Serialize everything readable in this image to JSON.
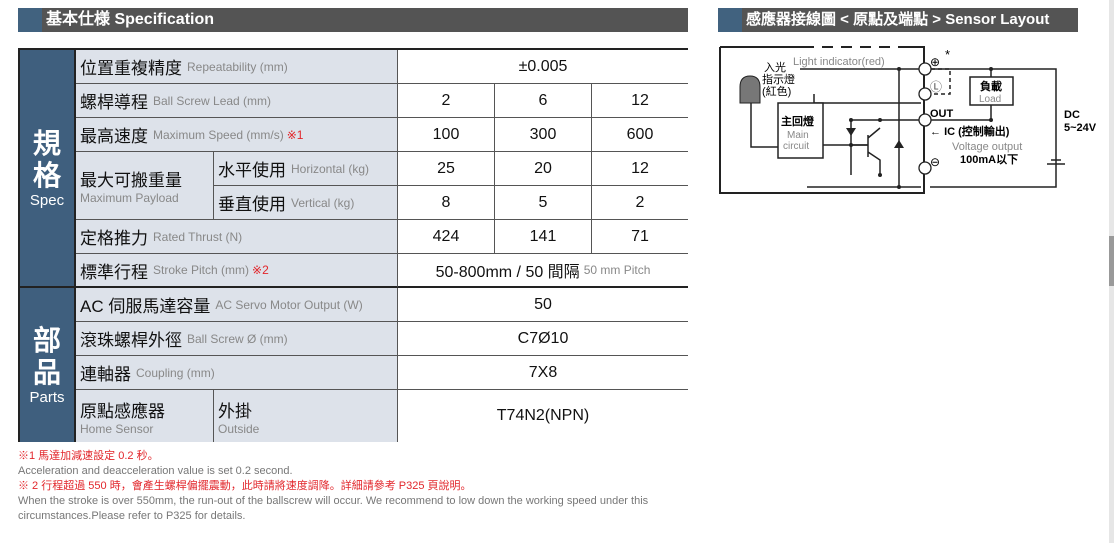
{
  "spec_header": "基本仕様 Specification",
  "sensor_header": "感應器接線圖 < 原點及端點 > Sensor Layout",
  "side": {
    "spec_zh1": "規",
    "spec_zh2": "格",
    "spec_en": "Spec",
    "parts_zh1": "部",
    "parts_zh2": "品",
    "parts_en": "Parts"
  },
  "rows": {
    "repeat": {
      "zh": "位置重複精度",
      "en": "Repeatability (mm)",
      "value": "±0.005"
    },
    "lead": {
      "zh": "螺桿導程",
      "en": "Ball Screw Lead (mm)",
      "values": [
        "2",
        "6",
        "12"
      ]
    },
    "speed": {
      "zh": "最高速度",
      "en": "Maximum Speed (mm/s)",
      "note": "※1",
      "values": [
        "100",
        "300",
        "600"
      ]
    },
    "payload": {
      "zh": "最大可搬重量",
      "en": "Maximum Payload",
      "horizontal": {
        "zh": "水平使用",
        "en": "Horizontal (kg)",
        "values": [
          "25",
          "20",
          "12"
        ]
      },
      "vertical": {
        "zh": "垂直使用",
        "en": "Vertical (kg)",
        "values": [
          "8",
          "5",
          "2"
        ]
      }
    },
    "thrust": {
      "zh": "定格推力",
      "en": "Rated Thrust (N)",
      "values": [
        "424",
        "141",
        "71"
      ]
    },
    "stroke": {
      "zh": "標準行程",
      "en": "Stroke Pitch (mm)",
      "note": "※2",
      "value": "50-800mm / 50 間隔",
      "value_en": "50 mm Pitch"
    },
    "motor": {
      "zh": "AC 伺服馬達容量",
      "en": "AC Servo Motor Output (W)",
      "value": "50"
    },
    "screw": {
      "zh": "滾珠螺桿外徑",
      "en": "Ball Screw Ø (mm)",
      "value": "C7Ø10"
    },
    "coupling": {
      "zh": "連軸器",
      "en": "Coupling (mm)",
      "value": "7X8"
    },
    "sensor": {
      "zh": "原點感應器",
      "en": "Home Sensor",
      "type_zh": "外掛",
      "type_en": "Outside",
      "value": "T74N2(NPN)"
    }
  },
  "notes": {
    "n1_zh": "※1 馬達加減速設定 0.2 秒。",
    "n1_en": "Acceleration and deacceleration value is set 0.2 second.",
    "n2_zh": "※ 2 行程超過 550 時，會產生螺桿偏擺震動，此時請將速度調降。詳細請參考 P325 頁說明。",
    "n2_en": "When the stroke is over 550mm, the run-out of the ballscrew will occur. We recommend to low down the working speed under this circumstances.Please refer to P325 for details."
  },
  "diagram": {
    "light_indicator": "Light indicator(red)",
    "light_zh1": "入光",
    "light_zh2": "指示燈",
    "light_zh3": "(紅色)",
    "main_zh": "主回燈",
    "main_en1": "Main",
    "main_en2": "circuit",
    "load_zh": "負載",
    "load_en": "Load",
    "out": "OUT",
    "ic": "IC",
    "ic_zh": "(控制輸出)",
    "voltage_output": "Voltage output",
    "current": "100mA以下",
    "dc": "DC",
    "dc_range": "5~24V",
    "plus": "⊕",
    "minus": "⊖",
    "l": "Ⓛ",
    "star": "*"
  },
  "colors": {
    "header": "#545454",
    "accent": "#41627f",
    "label_bg": "#dde2ea",
    "note_red": "#e2262b"
  }
}
